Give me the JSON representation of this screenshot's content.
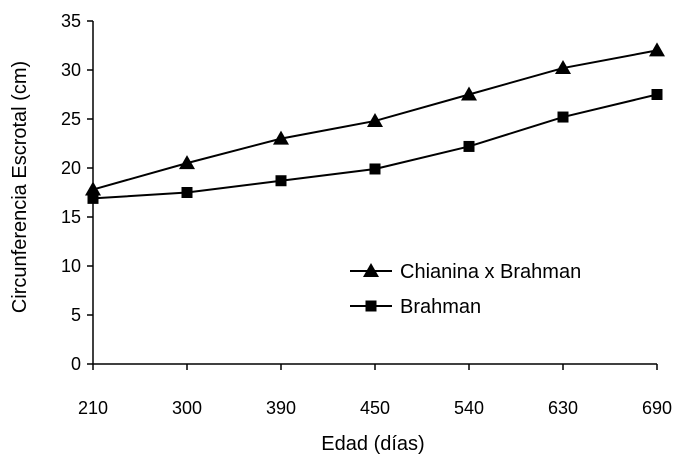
{
  "chart_data": {
    "type": "line",
    "title": "",
    "xlabel": "Edad (días)",
    "ylabel": "Circunferencia Escrotal (cm)",
    "categories": [
      "210",
      "300",
      "390",
      "450",
      "540",
      "630",
      "690"
    ],
    "ylim": [
      0,
      35
    ],
    "yticks": [
      0,
      5,
      10,
      15,
      20,
      25,
      30,
      35
    ],
    "grid": false,
    "legend_position": "center-right",
    "series": [
      {
        "name": "Chianina x Brahman",
        "marker": "triangle",
        "color": "#000000",
        "values": [
          17.8,
          20.5,
          23.0,
          24.8,
          27.5,
          30.2,
          32.0
        ]
      },
      {
        "name": "Brahman",
        "marker": "square",
        "color": "#000000",
        "values": [
          16.9,
          17.5,
          18.7,
          19.9,
          22.2,
          25.2,
          27.5
        ]
      }
    ]
  }
}
